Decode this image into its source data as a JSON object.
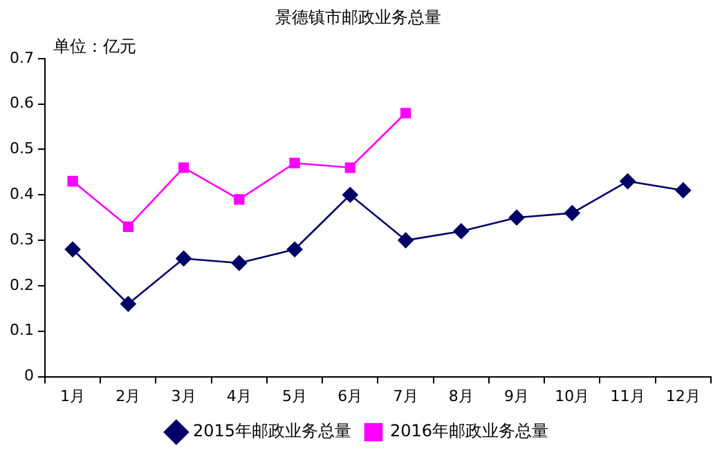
{
  "chart_data": {
    "type": "line",
    "title": "景德镇市邮政业务总量",
    "ylabel": "单位：亿元",
    "categories": [
      "1月",
      "2月",
      "3月",
      "4月",
      "5月",
      "6月",
      "7月",
      "8月",
      "9月",
      "10月",
      "11月",
      "12月"
    ],
    "series": [
      {
        "name": "2015年邮政业务总量",
        "color": "#000066",
        "marker": "diamond",
        "values": [
          0.28,
          0.16,
          0.26,
          0.25,
          0.28,
          0.4,
          0.3,
          0.32,
          0.35,
          0.36,
          0.43,
          0.41
        ]
      },
      {
        "name": "2016年邮政业务总量",
        "color": "#ff00ff",
        "marker": "square",
        "values": [
          0.43,
          0.33,
          0.46,
          0.39,
          0.47,
          0.46,
          0.58,
          null,
          null,
          null,
          null,
          null
        ]
      }
    ],
    "ylim": [
      0,
      0.7
    ],
    "yticks": [
      0,
      0.1,
      0.2,
      0.3,
      0.4,
      0.5,
      0.6,
      0.7
    ],
    "grid": false,
    "legend": "bottom"
  }
}
